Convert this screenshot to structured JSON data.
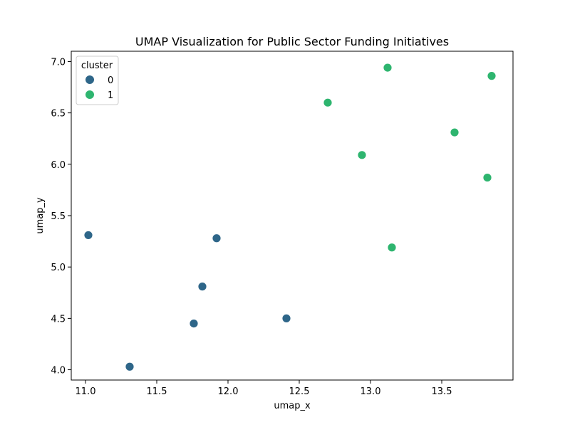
{
  "chart_data": {
    "type": "scatter",
    "title": "UMAP Visualization for Public Sector Funding Initiatives",
    "xlabel": "umap_x",
    "ylabel": "umap_y",
    "xlim": [
      10.9,
      14.0
    ],
    "ylim": [
      3.9,
      7.1
    ],
    "xticks": [
      "11.0",
      "11.5",
      "12.0",
      "12.5",
      "13.0",
      "13.5"
    ],
    "xtick_values": [
      11.0,
      11.5,
      12.0,
      12.5,
      13.0,
      13.5
    ],
    "yticks": [
      "4.0",
      "4.5",
      "5.0",
      "5.5",
      "6.0",
      "6.5",
      "7.0"
    ],
    "ytick_values": [
      4.0,
      4.5,
      5.0,
      5.5,
      6.0,
      6.5,
      7.0
    ],
    "grid": false,
    "legend": {
      "title": "cluster",
      "placement": "top-left",
      "entries": [
        "0",
        "1"
      ]
    },
    "series": [
      {
        "name": "0",
        "color": "#2e6689",
        "points": [
          {
            "x": 11.02,
            "y": 5.31
          },
          {
            "x": 11.31,
            "y": 4.03
          },
          {
            "x": 11.76,
            "y": 4.45
          },
          {
            "x": 11.82,
            "y": 4.81
          },
          {
            "x": 11.92,
            "y": 5.28
          },
          {
            "x": 12.41,
            "y": 4.5
          }
        ]
      },
      {
        "name": "1",
        "color": "#2eb56f",
        "points": [
          {
            "x": 12.7,
            "y": 6.6
          },
          {
            "x": 12.94,
            "y": 6.09
          },
          {
            "x": 13.12,
            "y": 6.94
          },
          {
            "x": 13.15,
            "y": 5.19
          },
          {
            "x": 13.59,
            "y": 6.31
          },
          {
            "x": 13.82,
            "y": 5.87
          },
          {
            "x": 13.85,
            "y": 6.86
          }
        ]
      }
    ]
  }
}
